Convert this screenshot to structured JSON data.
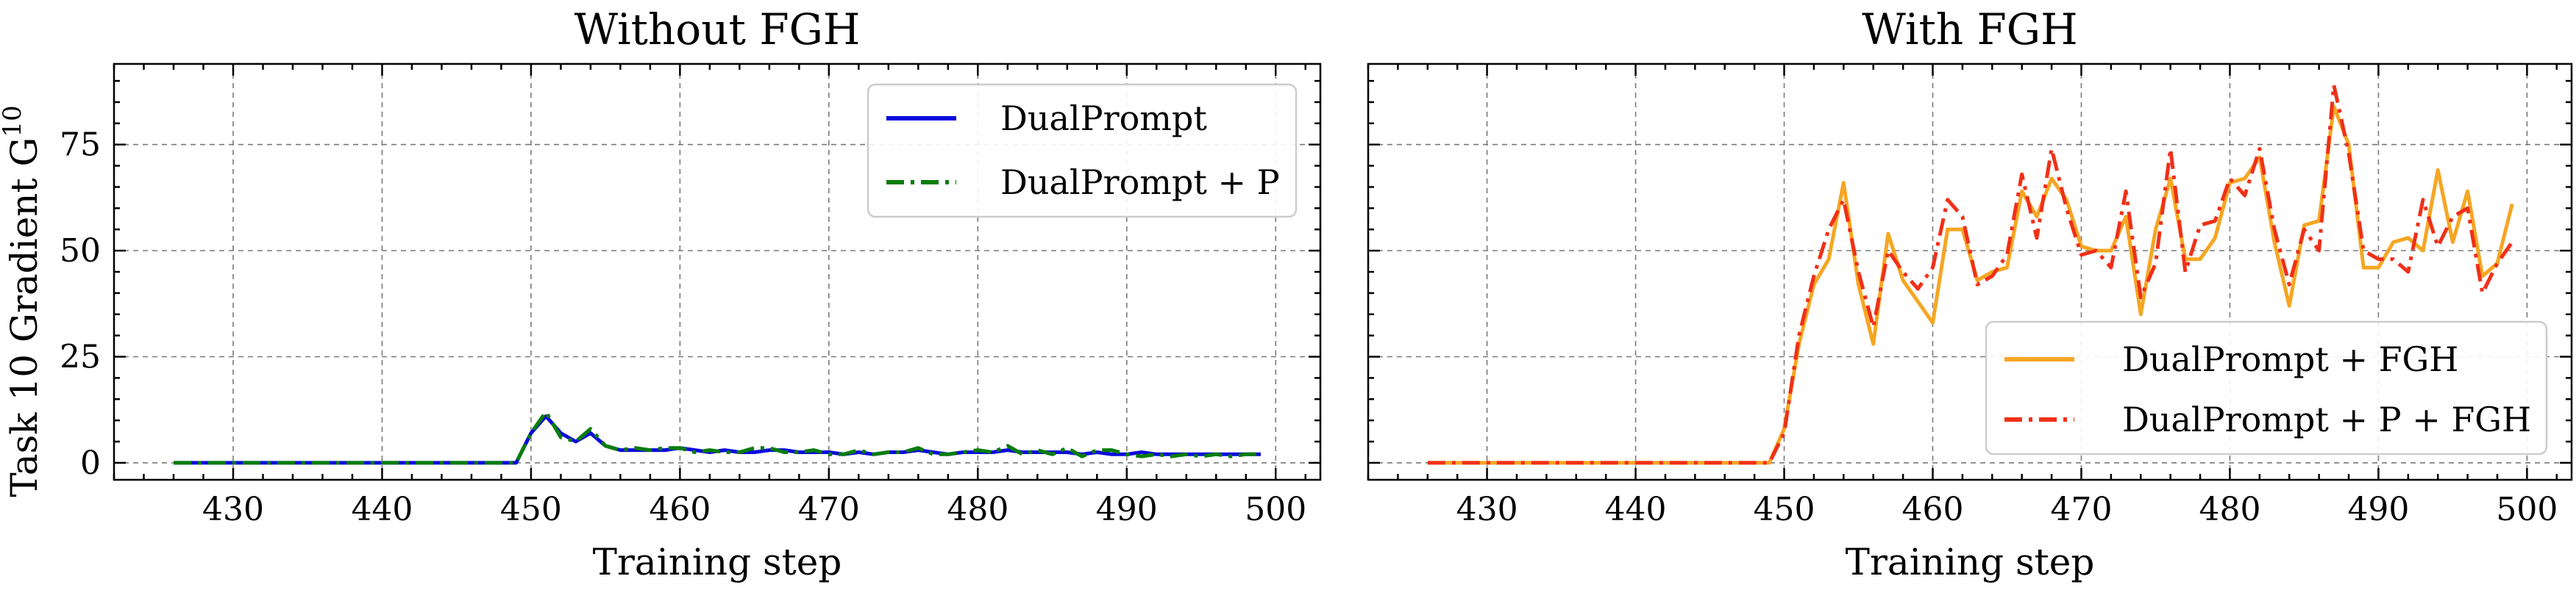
{
  "chart_data": [
    {
      "type": "line",
      "title": "Without FGH",
      "xlabel": "Training step",
      "ylabel": "Task 10 Gradient G",
      "ylabel_superscript": "10",
      "xlim": [
        422,
        503
      ],
      "ylim": [
        -4,
        94
      ],
      "xticks": [
        430,
        440,
        450,
        460,
        470,
        480,
        490,
        500
      ],
      "yticks": [
        0,
        25,
        50,
        75
      ],
      "grid": true,
      "legend_position": "top-right",
      "x": [
        426,
        427,
        428,
        429,
        430,
        431,
        432,
        433,
        434,
        435,
        436,
        437,
        438,
        439,
        440,
        441,
        442,
        443,
        444,
        445,
        446,
        447,
        448,
        449,
        450,
        451,
        452,
        453,
        454,
        455,
        456,
        457,
        458,
        459,
        460,
        461,
        462,
        463,
        464,
        465,
        466,
        467,
        468,
        469,
        470,
        471,
        472,
        473,
        474,
        475,
        476,
        477,
        478,
        479,
        480,
        481,
        482,
        483,
        484,
        485,
        486,
        487,
        488,
        489,
        490,
        491,
        492,
        493,
        494,
        495,
        496,
        497,
        498,
        499
      ],
      "series": [
        {
          "name": "DualPrompt",
          "color": "#0a0adc",
          "style": "solid",
          "values": [
            0,
            0,
            0,
            0,
            0,
            0,
            0,
            0,
            0,
            0,
            0,
            0,
            0,
            0,
            0,
            0,
            0,
            0,
            0,
            0,
            0,
            0,
            0,
            0,
            7,
            11,
            7,
            5,
            7,
            4,
            3,
            3,
            3,
            3,
            3.5,
            3,
            2.5,
            3,
            2.5,
            2.5,
            3,
            3,
            2.5,
            2.5,
            2.5,
            2,
            2.5,
            2,
            2.5,
            2.5,
            3,
            2.5,
            2,
            2.5,
            2.5,
            2.5,
            3,
            2.5,
            2.5,
            2.5,
            2.5,
            2,
            2.5,
            2,
            2,
            2.5,
            2,
            2,
            2,
            2,
            2,
            2,
            2,
            2
          ]
        },
        {
          "name": "DualPrompt + P",
          "color": "#0a7d0a",
          "style": "dashdot",
          "values": [
            0,
            0,
            0,
            0,
            0,
            0,
            0,
            0,
            0,
            0,
            0,
            0,
            0,
            0,
            0,
            0,
            0,
            0,
            0,
            0,
            0,
            0,
            0,
            0,
            7,
            12,
            6,
            5,
            8,
            4,
            3,
            3.5,
            3,
            3.5,
            3.5,
            2.5,
            3,
            2.5,
            2.5,
            3.5,
            3.5,
            2.5,
            2.5,
            3,
            2,
            2,
            3,
            2,
            2.5,
            2.5,
            3.5,
            2,
            2,
            2.5,
            3,
            2.5,
            4,
            2,
            3,
            2,
            3.5,
            1.5,
            3,
            3,
            2,
            1.5,
            2,
            1.5,
            2,
            1.5,
            2,
            1.5,
            2,
            2
          ]
        }
      ]
    },
    {
      "type": "line",
      "title": "With FGH",
      "xlabel": "Training step",
      "ylabel": "",
      "xlim": [
        422,
        503
      ],
      "ylim": [
        -4,
        94
      ],
      "xticks": [
        430,
        440,
        450,
        460,
        470,
        480,
        490,
        500
      ],
      "yticks": [
        0,
        25,
        50,
        75
      ],
      "grid": true,
      "legend_position": "lower-right",
      "x": [
        426,
        427,
        428,
        429,
        430,
        431,
        432,
        433,
        434,
        435,
        436,
        437,
        438,
        439,
        440,
        441,
        442,
        443,
        444,
        445,
        446,
        447,
        448,
        449,
        450,
        451,
        452,
        453,
        454,
        455,
        456,
        457,
        458,
        459,
        460,
        461,
        462,
        463,
        464,
        465,
        466,
        467,
        468,
        469,
        470,
        471,
        472,
        473,
        474,
        475,
        476,
        477,
        478,
        479,
        480,
        481,
        482,
        483,
        484,
        485,
        486,
        487,
        488,
        489,
        490,
        491,
        492,
        493,
        494,
        495,
        496,
        497,
        498,
        499
      ],
      "series": [
        {
          "name": "DualPrompt + FGH",
          "color": "#f5a623",
          "style": "solid",
          "values": [
            0,
            0,
            0,
            0,
            0,
            0,
            0,
            0,
            0,
            0,
            0,
            0,
            0,
            0,
            0,
            0,
            0,
            0,
            0,
            0,
            0,
            0,
            0,
            0,
            8,
            28,
            42,
            48,
            66,
            42,
            28,
            54,
            43,
            38,
            33,
            55,
            55,
            43,
            45,
            46,
            64,
            58,
            67,
            62,
            51,
            50,
            50,
            58,
            35,
            55,
            67,
            48,
            48,
            53,
            66,
            67,
            72,
            52,
            37,
            56,
            57,
            84,
            75,
            46,
            46,
            52,
            53,
            50,
            69,
            52,
            64,
            44,
            47,
            61
          ]
        },
        {
          "name": "DualPrompt + P + FGH",
          "color": "#f03018",
          "style": "dashdot",
          "values": [
            0,
            0,
            0,
            0,
            0,
            0,
            0,
            0,
            0,
            0,
            0,
            0,
            0,
            0,
            0,
            0,
            0,
            0,
            0,
            0,
            0,
            0,
            0,
            0,
            7,
            30,
            44,
            55,
            62,
            45,
            32,
            50,
            45,
            41,
            46,
            62,
            58,
            42,
            44,
            49,
            68,
            53,
            74,
            60,
            49,
            50,
            46,
            64,
            39,
            47,
            74,
            45,
            56,
            57,
            67,
            63,
            74,
            55,
            42,
            55,
            50,
            89,
            73,
            50,
            48,
            48,
            45,
            62,
            51,
            58,
            60,
            40,
            47,
            52
          ]
        }
      ]
    }
  ]
}
